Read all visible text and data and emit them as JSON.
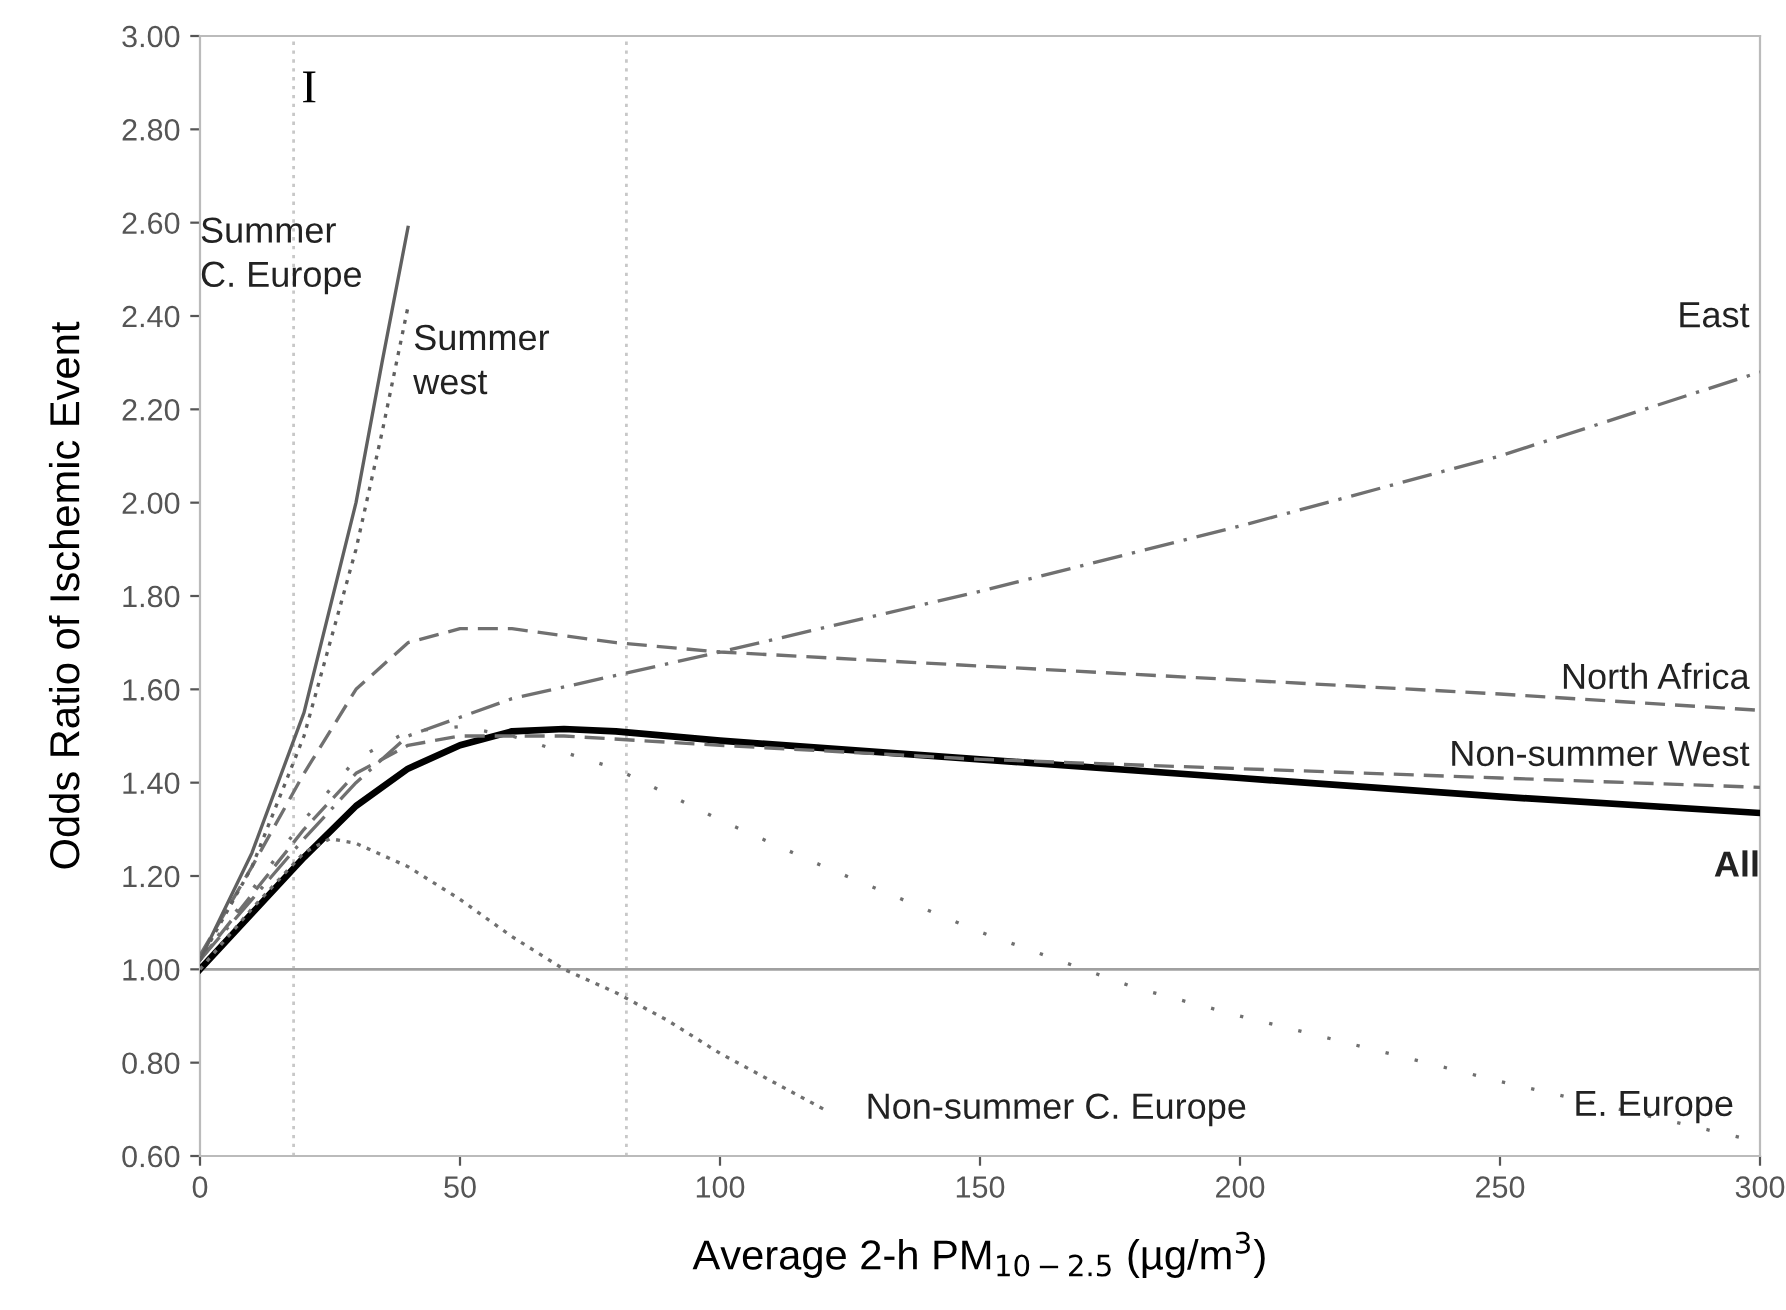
{
  "chart_data": {
    "type": "line",
    "xlabel": "Average 2-h PM$_{10−2.5}$ (µg/m$^{3}$)",
    "ylabel": "Odds Ratio of Ischemic Event",
    "xlim": [
      0,
      300
    ],
    "ylim": [
      0.6,
      3.0
    ],
    "xticks": [
      0,
      50,
      100,
      150,
      200,
      250,
      300
    ],
    "yticks": [
      {
        "value": 0.6,
        "label": "0.60"
      },
      {
        "value": 0.8,
        "label": "0.80"
      },
      {
        "value": 1.0,
        "label": "1.00"
      },
      {
        "value": 1.2,
        "label": "1.20"
      },
      {
        "value": 1.4,
        "label": "1.40"
      },
      {
        "value": 1.6,
        "label": "1.60"
      },
      {
        "value": 1.8,
        "label": "1.80"
      },
      {
        "value": 2.0,
        "label": "2.00"
      },
      {
        "value": 2.2,
        "label": "2.20"
      },
      {
        "value": 2.4,
        "label": "2.40"
      },
      {
        "value": 2.6,
        "label": "2.60"
      },
      {
        "value": 2.8,
        "label": "2.80"
      },
      {
        "value": 3.0,
        "label": "3.00"
      }
    ],
    "grid": false,
    "legend": false,
    "marker": "none",
    "annotations": [
      "I"
    ],
    "ref_lines": [
      {
        "axis": "x",
        "value": 18,
        "color": "#c8c8c8",
        "line_style": "dotted"
      },
      {
        "axis": "x",
        "value": 82,
        "color": "#c8c8c8",
        "line_style": "dotted"
      },
      {
        "axis": "y",
        "value": 1.0,
        "color": "#a0a0a0",
        "line_style": "solid"
      }
    ],
    "series": [
      {
        "name": "All",
        "color": "#000000",
        "line_style": "solid",
        "x": [
          0,
          10,
          20,
          30,
          40,
          50,
          60,
          70,
          80,
          100,
          150,
          200,
          250,
          300
        ],
        "values": [
          1.0,
          1.12,
          1.24,
          1.35,
          1.43,
          1.48,
          1.51,
          1.515,
          1.51,
          1.49,
          1.45,
          1.41,
          1.37,
          1.335
        ]
      },
      {
        "name": "Non-summer West",
        "color": "#707070",
        "line_style": "dashed",
        "x": [
          0,
          10,
          20,
          30,
          40,
          50,
          70,
          100,
          150,
          200,
          250,
          300
        ],
        "values": [
          1.02,
          1.16,
          1.3,
          1.42,
          1.48,
          1.5,
          1.5,
          1.48,
          1.45,
          1.43,
          1.41,
          1.39
        ]
      },
      {
        "name": "North Africa",
        "color": "#707070",
        "line_style": "dashed",
        "x": [
          0,
          10,
          20,
          30,
          40,
          50,
          60,
          80,
          100,
          150,
          200,
          250,
          300
        ],
        "values": [
          1.03,
          1.22,
          1.42,
          1.6,
          1.7,
          1.73,
          1.73,
          1.7,
          1.68,
          1.65,
          1.62,
          1.59,
          1.555
        ]
      },
      {
        "name": "East",
        "color": "#707070",
        "line_style": "dashdot",
        "x": [
          0,
          10,
          20,
          30,
          40,
          60,
          80,
          100,
          150,
          200,
          250,
          300
        ],
        "values": [
          1.02,
          1.15,
          1.28,
          1.4,
          1.5,
          1.58,
          1.63,
          1.68,
          1.81,
          1.95,
          2.1,
          2.28
        ]
      },
      {
        "name": "E. Europe",
        "color": "#707070",
        "line_style": "sparse_dotted",
        "x": [
          0,
          10,
          20,
          30,
          40,
          50,
          60,
          80,
          100,
          120,
          150,
          180,
          200,
          250,
          300
        ],
        "values": [
          1.02,
          1.17,
          1.32,
          1.45,
          1.51,
          1.52,
          1.5,
          1.43,
          1.32,
          1.22,
          1.08,
          0.96,
          0.9,
          0.76,
          0.63
        ]
      },
      {
        "name": "Non-summer C. Europe",
        "color": "#707070",
        "line_style": "dotted",
        "x": [
          0,
          10,
          20,
          25,
          30,
          40,
          50,
          60,
          70,
          80,
          90,
          100,
          110,
          120
        ],
        "values": [
          1.0,
          1.13,
          1.25,
          1.28,
          1.27,
          1.22,
          1.15,
          1.07,
          1.0,
          0.95,
          0.89,
          0.82,
          0.76,
          0.7
        ]
      },
      {
        "name": "Summer C. Europe",
        "color": "#606060",
        "line_style": "solid",
        "x": [
          0,
          10,
          20,
          30,
          35,
          40
        ],
        "values": [
          1.02,
          1.25,
          1.55,
          2.0,
          2.3,
          2.59
        ]
      },
      {
        "name": "Summer west",
        "color": "#606060",
        "line_style": "dotted",
        "x": [
          0,
          10,
          20,
          30,
          35,
          40
        ],
        "values": [
          1.02,
          1.22,
          1.5,
          1.9,
          2.15,
          2.42
        ]
      }
    ]
  }
}
